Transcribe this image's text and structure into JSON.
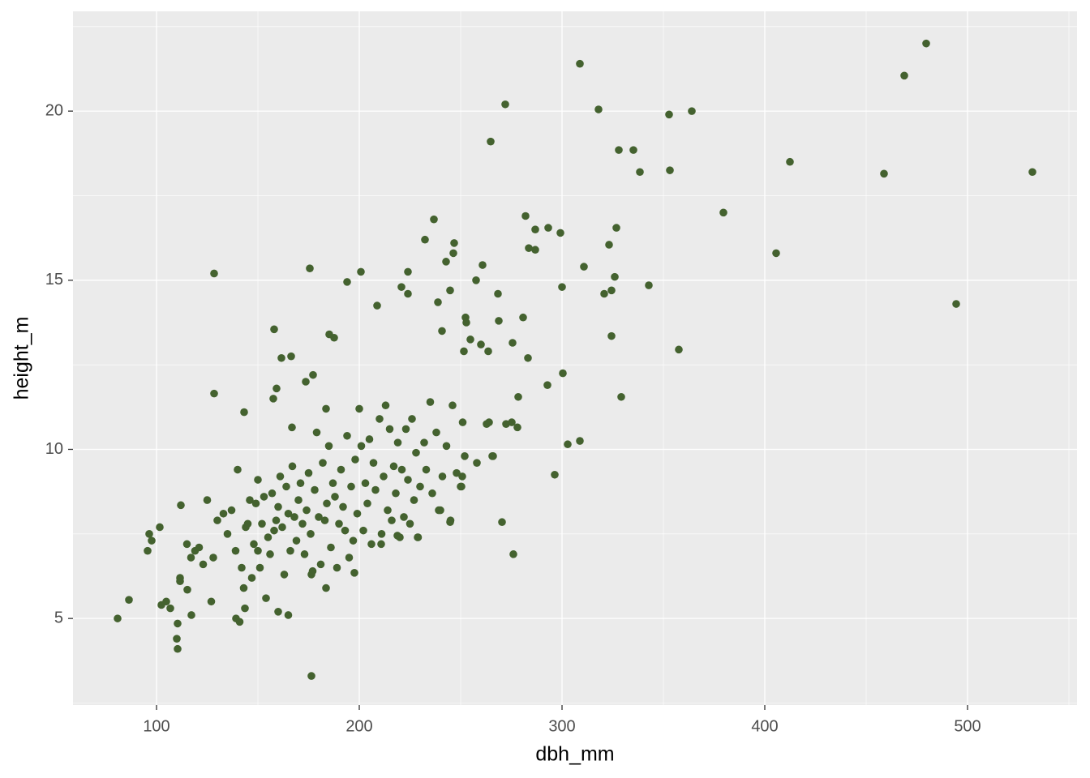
{
  "chart_data": {
    "type": "scatter",
    "x_label": "dbh_mm",
    "y_label": "height_m",
    "color": "#44622f",
    "xlim": [
      58.8,
      554
    ],
    "ylim": [
      2.44,
      22.95
    ],
    "xticks": [
      100,
      200,
      300,
      400,
      500
    ],
    "yticks": [
      5,
      10,
      15,
      20
    ],
    "grid": true,
    "x": [
      80.8,
      86.4,
      97.6,
      96.4,
      95.6,
      101.6,
      102.4,
      104.8,
      106.8,
      110.4,
      110,
      110.4,
      111.6,
      111.6,
      112,
      128.4,
      128.4,
      175.6,
      176.4,
      158,
      161.6,
      166.4,
      173.6,
      177.2,
      185.2,
      187.6,
      194,
      200.8,
      208.8,
      220.8,
      224,
      224,
      232.4,
      236.8,
      238.8,
      240.8,
      242.8,
      244.8,
      246.4,
      246.8,
      264.8,
      272,
      308.8,
      251.6,
      252.4,
      252.8,
      254.8,
      257.6,
      260,
      260.8,
      263.6,
      268.4,
      268.8,
      275.6,
      280.8,
      283.2,
      278.4,
      282,
      283.6,
      286.8,
      286.8,
      293.2,
      299.2,
      300,
      300.4,
      292.8,
      296.4,
      310.8,
      318,
      320.8,
      323.2,
      324.4,
      324.4,
      326,
      326.8,
      328,
      329.2,
      335.2,
      338.4,
      342.8,
      352.8,
      353.2,
      357.6,
      364,
      379.6,
      405.6,
      412.4,
      458.8,
      468.8,
      479.6,
      494.4,
      532,
      302.8,
      308.8,
      270.4,
      276,
      265.6,
      262.8,
      272.4,
      275.2,
      278,
      250.8,
      250.4,
      244.8,
      239.2,
      228.8,
      218.8,
      210.8,
      197.6,
      183.6,
      176.4,
      143.6,
      139.2,
      117.2,
      115.2,
      143.2,
      159.2,
      157.6,
      166.8,
      183.6,
      115,
      117,
      119,
      121,
      123,
      125,
      127,
      128,
      130,
      133,
      135,
      137,
      139,
      140,
      141,
      142,
      143,
      144,
      145,
      146,
      147,
      148,
      149,
      150,
      150,
      151,
      152,
      153,
      154,
      155,
      156,
      157,
      158,
      159,
      160,
      160,
      161,
      162,
      163,
      164,
      165,
      165,
      166,
      167,
      168,
      169,
      170,
      171,
      172,
      173,
      174,
      175,
      176,
      177,
      178,
      179,
      180,
      181,
      182,
      183,
      184,
      185,
      186,
      187,
      188,
      189,
      190,
      191,
      192,
      193,
      194,
      195,
      196,
      197,
      198,
      199,
      200,
      201,
      202,
      203,
      204,
      205,
      206,
      207,
      208,
      210,
      211,
      212,
      213,
      214,
      215,
      216,
      217,
      218,
      219,
      220,
      221,
      222,
      223,
      224,
      225,
      226,
      227,
      228,
      229,
      230,
      232,
      233,
      235,
      236,
      238,
      240,
      241,
      243,
      245,
      246,
      248,
      250,
      251,
      252,
      258,
      264,
      266
    ],
    "y": [
      5.0,
      5.55,
      7.3,
      7.5,
      7.0,
      7.7,
      5.4,
      5.5,
      5.3,
      4.85,
      4.4,
      4.1,
      6.2,
      6.1,
      8.35,
      15.2,
      11.65,
      15.35,
      3.3,
      13.55,
      12.7,
      12.75,
      12.0,
      12.2,
      13.4,
      13.3,
      14.95,
      15.25,
      14.25,
      14.8,
      14.6,
      15.25,
      16.2,
      16.8,
      14.35,
      13.5,
      15.55,
      14.7,
      15.8,
      16.1,
      19.1,
      20.2,
      21.4,
      12.9,
      13.9,
      13.75,
      13.25,
      15.0,
      13.1,
      15.45,
      12.9,
      14.6,
      13.8,
      13.15,
      13.9,
      12.7,
      11.55,
      16.9,
      15.95,
      16.5,
      15.9,
      16.55,
      16.4,
      14.8,
      12.25,
      11.9,
      9.25,
      15.4,
      20.05,
      14.6,
      16.05,
      14.7,
      13.35,
      15.1,
      16.55,
      18.85,
      11.55,
      18.85,
      18.2,
      14.85,
      19.9,
      18.25,
      12.95,
      20.0,
      17.0,
      15.8,
      18.5,
      18.15,
      21.05,
      22.0,
      14.3,
      18.2,
      10.15,
      10.25,
      7.85,
      6.9,
      9.8,
      10.75,
      10.75,
      10.8,
      10.65,
      9.2,
      8.9,
      7.85,
      8.2,
      7.4,
      7.45,
      7.2,
      6.35,
      5.9,
      6.3,
      5.3,
      5.0,
      5.1,
      5.85,
      11.1,
      11.8,
      11.5,
      10.65,
      11.2,
      7.2,
      6.8,
      7.0,
      7.1,
      6.6,
      8.5,
      5.5,
      6.8,
      7.9,
      8.1,
      7.5,
      8.2,
      7.0,
      9.4,
      4.9,
      6.5,
      5.9,
      7.7,
      7.8,
      8.5,
      6.2,
      7.2,
      8.4,
      7.0,
      9.1,
      6.5,
      7.8,
      8.6,
      5.6,
      7.4,
      6.9,
      8.7,
      7.6,
      7.9,
      8.3,
      5.2,
      9.2,
      7.7,
      6.3,
      8.9,
      8.1,
      5.1,
      7.0,
      9.5,
      8.0,
      7.3,
      8.5,
      9.0,
      7.8,
      6.9,
      8.2,
      9.3,
      7.5,
      6.4,
      8.8,
      10.5,
      8.0,
      6.6,
      9.6,
      7.9,
      8.4,
      10.1,
      7.1,
      9.0,
      8.6,
      6.5,
      7.8,
      9.4,
      8.3,
      7.6,
      10.4,
      6.8,
      8.9,
      7.3,
      9.7,
      8.1,
      11.2,
      10.1,
      7.6,
      9.0,
      8.4,
      10.3,
      7.2,
      9.6,
      8.8,
      10.9,
      7.5,
      9.2,
      11.3,
      8.2,
      10.6,
      7.9,
      9.5,
      8.7,
      10.2,
      7.4,
      9.4,
      8.0,
      10.6,
      9.1,
      7.8,
      10.9,
      8.5,
      9.9,
      7.4,
      8.9,
      10.2,
      9.4,
      11.4,
      8.7,
      10.5,
      8.2,
      9.2,
      10.1,
      7.9,
      11.3,
      9.3,
      8.9,
      10.8,
      9.8,
      9.6,
      10.8,
      9.8
    ]
  }
}
